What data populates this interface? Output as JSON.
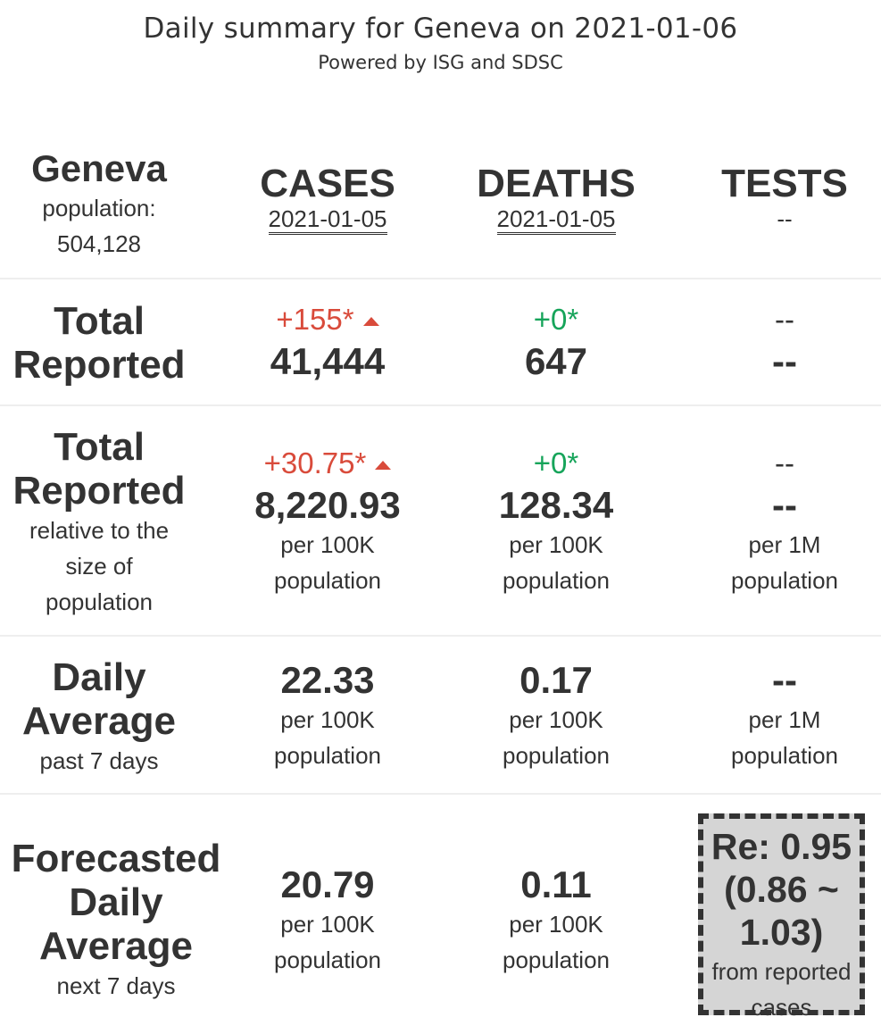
{
  "header": {
    "title": "Daily summary for Geneva on 2021-01-06",
    "subtitle": "Powered by ISG and SDSC"
  },
  "region": {
    "name": "Geneva",
    "population_label": "population:",
    "population": "504,128"
  },
  "columns": {
    "cases": {
      "label": "CASES",
      "date": "2021-01-05"
    },
    "deaths": {
      "label": "DEATHS",
      "date": "2021-01-05"
    },
    "tests": {
      "label": "TESTS",
      "date": "--"
    }
  },
  "rows": {
    "total": {
      "label_line1": "Total",
      "label_line2": "Reported",
      "cases_delta": "+155*",
      "cases_value": "41,444",
      "deaths_delta": "+0*",
      "deaths_value": "647",
      "tests_delta": "--",
      "tests_value": "--"
    },
    "relative": {
      "label_line1": "Total",
      "label_line2": "Reported",
      "sub1": "relative to the",
      "sub2": "size of",
      "sub3": "population",
      "cases_delta": "+30.75*",
      "cases_value": "8,220.93",
      "cases_unit1": "per 100K",
      "cases_unit2": "population",
      "deaths_delta": "+0*",
      "deaths_value": "128.34",
      "deaths_unit1": "per 100K",
      "deaths_unit2": "population",
      "tests_delta": "--",
      "tests_value": "--",
      "tests_unit1": "per 1M",
      "tests_unit2": "population"
    },
    "daily_avg": {
      "label_line1": "Daily",
      "label_line2": "Average",
      "sub": "past 7 days",
      "cases_value": "22.33",
      "cases_unit1": "per 100K",
      "cases_unit2": "population",
      "deaths_value": "0.17",
      "deaths_unit1": "per 100K",
      "deaths_unit2": "population",
      "tests_value": "--",
      "tests_unit1": "per 1M",
      "tests_unit2": "population"
    },
    "forecast": {
      "label_line1": "Forecasted",
      "label_line2": "Daily",
      "label_line3": "Average",
      "sub": "next 7 days",
      "cases_value": "20.79",
      "cases_unit1": "per 100K",
      "cases_unit2": "population",
      "deaths_value": "0.11",
      "deaths_unit1": "per 100K",
      "deaths_unit2": "population",
      "re_line1": "Re: 0.95",
      "re_line2": "(0.86 ~",
      "re_line3": "1.03)",
      "re_sub1": "from reported",
      "re_sub2": "cases"
    }
  },
  "colors": {
    "increase": "#d94b3b",
    "no_change": "#16a45a",
    "re_box_bg": "#d5d5d5"
  },
  "icons": {
    "increase": "triangle-up-icon"
  }
}
